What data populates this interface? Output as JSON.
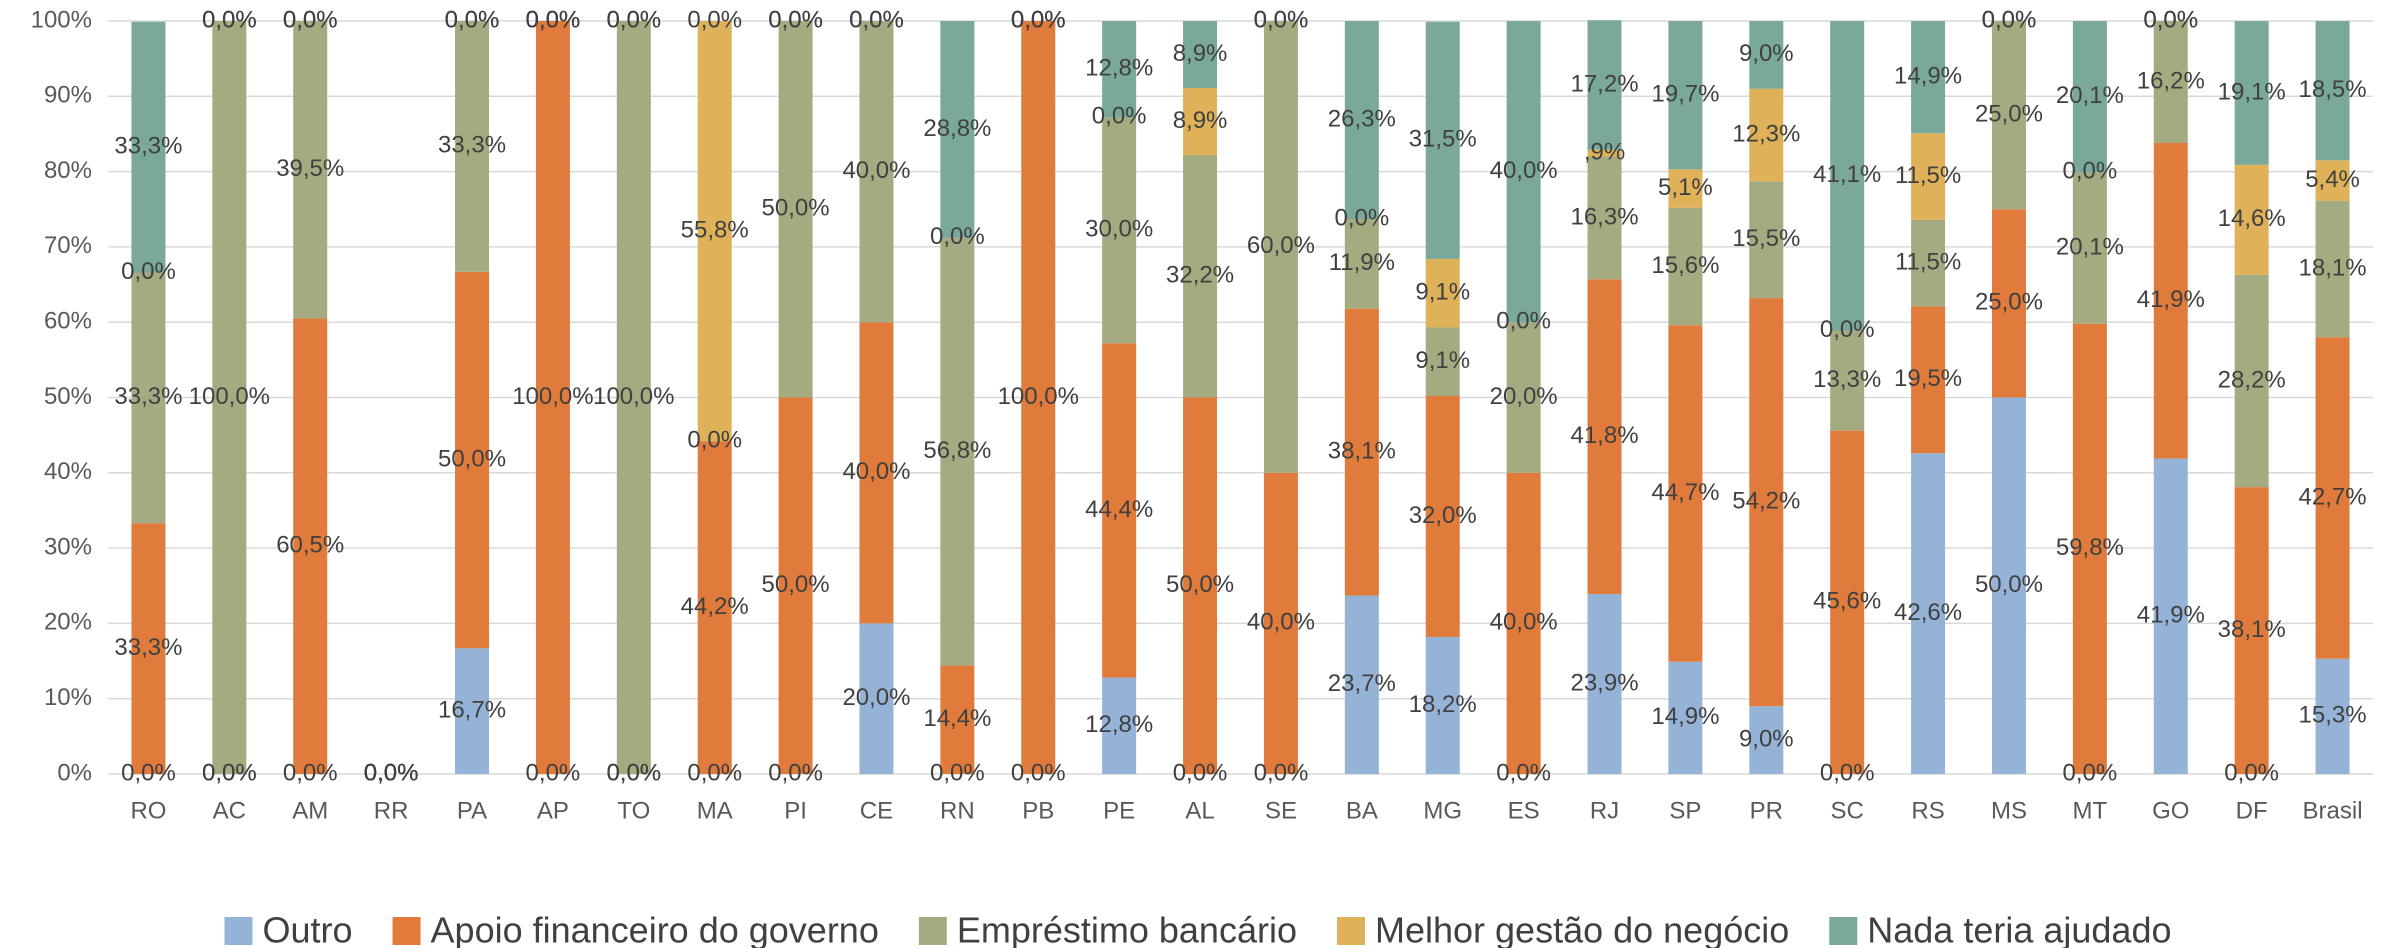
{
  "chart_data": {
    "type": "stacked_bar",
    "categories": [
      "RO",
      "AC",
      "AM",
      "RR",
      "PA",
      "AP",
      "TO",
      "MA",
      "PI",
      "CE",
      "RN",
      "PB",
      "PE",
      "AL",
      "SE",
      "BA",
      "MG",
      "ES",
      "RJ",
      "SP",
      "PR",
      "SC",
      "RS",
      "MS",
      "MT",
      "GO",
      "DF",
      "Brasil"
    ],
    "series": [
      {
        "name": "Outro",
        "color": "#95b3d7",
        "values": [
          0,
          0,
          0,
          0,
          16.7,
          0,
          0,
          0,
          0,
          20,
          0,
          0,
          12.8,
          0,
          0,
          23.7,
          18.2,
          0,
          23.9,
          14.9,
          9,
          0,
          42.6,
          50,
          0,
          41.9,
          0,
          15.3
        ],
        "value_labels": [
          "0,0%",
          "0,0%",
          "0,0%",
          "0,0%",
          "16,7%",
          "0,0%",
          "0,0%",
          "0,0%",
          "0,0%",
          "20,0%",
          "0,0%",
          "0,0%",
          "12,8%",
          "0,0%",
          "0,0%",
          "23,7%",
          "18,2%",
          "0,0%",
          "23,9%",
          "14,9%",
          "9,0%",
          "0,0%",
          "42,6%",
          "50,0%",
          "0,0%",
          "41,9%",
          "0,0%",
          "15,3%"
        ]
      },
      {
        "name": "Apoio financeiro do governo",
        "color": "#e07b3c",
        "values": [
          33.3,
          0,
          60.5,
          0,
          50,
          100,
          0,
          44.2,
          50,
          40,
          14.4,
          100,
          44.4,
          50,
          40,
          38.1,
          32,
          40,
          41.8,
          44.7,
          54.2,
          45.6,
          19.5,
          25,
          59.8,
          41.9,
          38.1,
          42.7
        ],
        "value_labels": [
          "33,3%",
          "0,0%",
          "60,5%",
          "0,0%",
          "50,0%",
          "100,0%",
          "0,0%",
          "44,2%",
          "50,0%",
          "40,0%",
          "14,4%",
          "100,0%",
          "44,4%",
          "50,0%",
          "40,0%",
          "38,1%",
          "32,0%",
          "40,0%",
          "41,8%",
          "44,7%",
          "54,2%",
          "45,6%",
          "19,5%",
          "25,0%",
          "59,8%",
          "41,9%",
          "38,1%",
          "42,7%"
        ]
      },
      {
        "name": "Empréstimo bancário",
        "color": "#a5ab81",
        "values": [
          33.3,
          100,
          39.5,
          0,
          33.3,
          0,
          100,
          0,
          50,
          40,
          56.8,
          0,
          30,
          32.2,
          60,
          11.9,
          9.1,
          20,
          16.3,
          15.6,
          15.5,
          13.3,
          11.5,
          25,
          20.1,
          16.2,
          28.2,
          18.1
        ],
        "value_labels": [
          "33,3%",
          "100,0%",
          "39,5%",
          "0,0%",
          "33,3%",
          "0,0%",
          "100,0%",
          "0,0%",
          "50,0%",
          "40,0%",
          "56,8%",
          "0,0%",
          "30,0%",
          "32,2%",
          "60,0%",
          "11,9%",
          "9,1%",
          "20,0%",
          "16,3%",
          "15,6%",
          "15,5%",
          "13,3%",
          "11,5%",
          "25,0%",
          "20,1%",
          "16,2%",
          "28,2%",
          "18,1%"
        ]
      },
      {
        "name": "Melhor gestão do negócio",
        "color": "#dfb25a",
        "values": [
          0,
          0,
          0,
          0,
          0,
          0,
          0,
          55.8,
          0,
          0,
          0,
          0,
          0,
          8.9,
          0,
          0,
          9.1,
          0,
          0.9,
          5.1,
          12.3,
          0,
          11.5,
          0,
          0,
          0,
          14.6,
          5.4
        ],
        "value_labels": [
          "0,0%",
          "0,0%",
          "0,0%",
          "0,0%",
          "0,0%",
          "0,0%",
          "0,0%",
          "55,8%",
          "0,0%",
          "0,0%",
          "0,0%",
          "0,0%",
          "0,0%",
          "8,9%",
          "0,0%",
          "0,0%",
          "9,1%",
          "0,0%",
          ",9%",
          "5,1%",
          "12,3%",
          "0,0%",
          "11,5%",
          "0,0%",
          "0,0%",
          "0,0%",
          "14,6%",
          "5,4%"
        ]
      },
      {
        "name": "Nada teria ajudado",
        "color": "#7aa89b",
        "values": [
          33.3,
          0,
          0,
          0,
          0,
          0,
          0,
          0,
          0,
          0,
          28.8,
          0,
          12.8,
          8.9,
          0,
          26.3,
          31.5,
          40,
          17.2,
          19.7,
          9,
          41.1,
          14.9,
          0,
          20.1,
          0,
          19.1,
          18.5
        ],
        "value_labels": [
          "33,3%",
          "0,0%",
          "0,0%",
          "0,0%",
          "0,0%",
          "0,0%",
          "0,0%",
          "0,0%",
          "0,0%",
          "0,0%",
          "28,8%",
          "0,0%",
          "12,8%",
          "8,9%",
          "0,0%",
          "26,3%",
          "31,5%",
          "40,0%",
          "17,2%",
          "19,7%",
          "9,0%",
          "41,1%",
          "14,9%",
          "0,0%",
          "20,1%",
          "0,0%",
          "19,1%",
          "18,5%"
        ]
      }
    ],
    "ylim": [
      0,
      100
    ],
    "yticks": [
      {
        "value": 0,
        "label": "0%"
      },
      {
        "value": 10,
        "label": "10%"
      },
      {
        "value": 20,
        "label": "20%"
      },
      {
        "value": 30,
        "label": "30%"
      },
      {
        "value": 40,
        "label": "40%"
      },
      {
        "value": 50,
        "label": "50%"
      },
      {
        "value": 60,
        "label": "60%"
      },
      {
        "value": 70,
        "label": "70%"
      },
      {
        "value": 80,
        "label": "80%"
      },
      {
        "value": 90,
        "label": "90%"
      },
      {
        "value": 100,
        "label": "100%"
      }
    ],
    "grid": true,
    "legend": "bottom"
  }
}
